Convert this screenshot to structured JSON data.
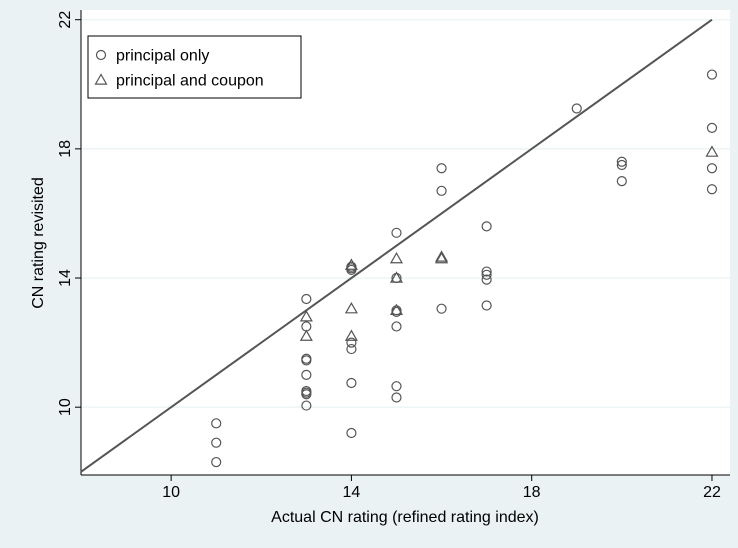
{
  "chart_data": {
    "type": "scatter",
    "xlabel": "Actual CN rating (refined rating index)",
    "ylabel": "CN rating revisited",
    "xlim": [
      8,
      22.4
    ],
    "ylim": [
      7.9,
      22.3
    ],
    "xticks": [
      10,
      14,
      18,
      22
    ],
    "yticks": [
      10,
      14,
      18,
      22
    ],
    "grid": "horizontal at y ticks",
    "legend_position": "top-left",
    "series": [
      {
        "name": "principal only",
        "marker": "circle",
        "x": [
          11,
          11,
          11,
          13,
          13,
          13,
          13,
          13,
          13,
          13,
          13,
          13,
          14,
          14,
          14,
          14,
          14,
          14,
          14,
          15,
          15,
          15,
          15,
          15,
          15,
          15,
          16,
          16,
          16,
          17,
          17,
          17,
          17,
          17,
          19,
          20,
          20,
          20,
          22,
          22,
          22,
          22
        ],
        "y": [
          9.5,
          8.9,
          8.3,
          13.35,
          12.5,
          11.5,
          11.45,
          11.0,
          10.5,
          10.4,
          10.05,
          10.45,
          14.35,
          14.25,
          12.0,
          11.8,
          10.75,
          9.2,
          14.3,
          15.4,
          13.0,
          12.95,
          12.5,
          10.65,
          10.3,
          14.0,
          17.4,
          16.7,
          13.05,
          15.6,
          14.2,
          14.1,
          13.95,
          13.15,
          19.25,
          17.6,
          17.5,
          17.0,
          20.3,
          18.65,
          17.4,
          16.75
        ]
      },
      {
        "name": "principal and coupon",
        "marker": "triangle",
        "x": [
          13,
          13,
          14,
          14,
          14,
          15,
          15,
          15,
          16,
          16,
          22
        ],
        "y": [
          12.8,
          12.2,
          14.4,
          13.05,
          12.2,
          14.6,
          14.0,
          13.0,
          14.65,
          14.6,
          17.9
        ]
      }
    ],
    "reference_line": {
      "x": [
        8,
        22
      ],
      "y": [
        8,
        22
      ]
    }
  }
}
